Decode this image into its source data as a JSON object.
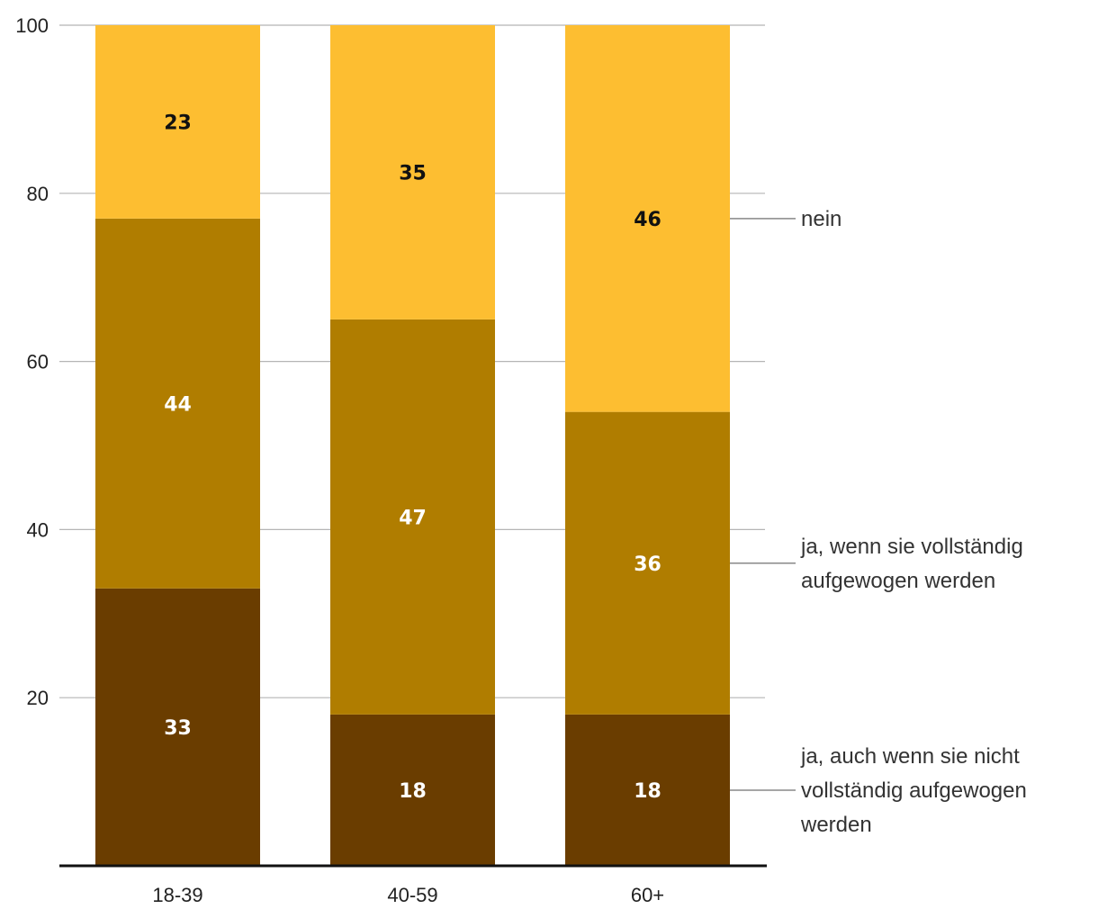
{
  "chart_data": {
    "type": "bar",
    "stacked": true,
    "categories": [
      "18-39",
      "40-59",
      "60+"
    ],
    "series": [
      {
        "name": "ja, auch wenn sie nicht vollständig aufgewogen werden",
        "legend_lines": [
          "ja, auch wenn sie nicht",
          "vollständig aufgewogen",
          "werden"
        ],
        "values": [
          33,
          18,
          18
        ],
        "color": "#6a3d00",
        "label_color": "#ffffff"
      },
      {
        "name": "ja, wenn sie vollständig aufgewogen werden",
        "legend_lines": [
          "ja, wenn sie vollständig",
          "aufgewogen werden"
        ],
        "values": [
          44,
          47,
          36
        ],
        "color": "#b07d00",
        "label_color": "#ffffff"
      },
      {
        "name": "nein",
        "legend_lines": [
          "nein"
        ],
        "values": [
          23,
          35,
          46
        ],
        "color": "#fdbe31",
        "label_color": "#111111"
      }
    ],
    "ylim": [
      0,
      100
    ],
    "yticks": [
      20,
      40,
      60,
      80,
      100
    ],
    "grid": true,
    "legend_position": "right",
    "title": "",
    "xlabel": "",
    "ylabel": ""
  }
}
